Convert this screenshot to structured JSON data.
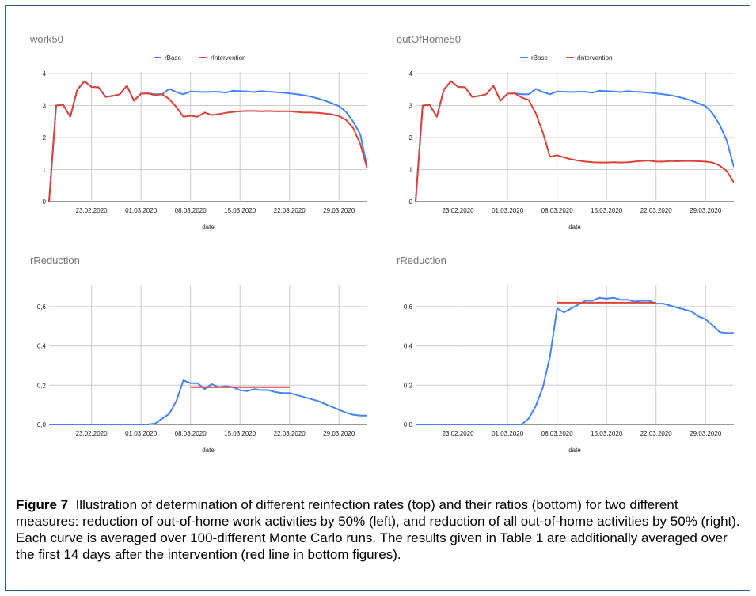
{
  "chart_data": [
    {
      "type": "line",
      "title": "work50",
      "xlabel": "date",
      "ylabel": "",
      "ylim": [
        0,
        4
      ],
      "yticks": [
        "0",
        "1",
        "2",
        "3",
        "4"
      ],
      "xtick_labels": [
        "23.02.2020",
        "01.03.2020",
        "08.03.2020",
        "15.03.2020",
        "22.03.2020",
        "29.03.2020"
      ],
      "xtick_index": [
        6,
        13,
        20,
        27,
        34,
        41
      ],
      "grid": true,
      "legend": "top-center",
      "series": [
        {
          "name": "rBase",
          "color": "#4285f4",
          "values": [
            0,
            3.0,
            3.02,
            2.65,
            3.5,
            3.76,
            3.58,
            3.57,
            3.27,
            3.3,
            3.35,
            3.62,
            3.15,
            3.37,
            3.38,
            3.35,
            3.35,
            3.52,
            3.42,
            3.35,
            3.44,
            3.43,
            3.42,
            3.43,
            3.43,
            3.4,
            3.46,
            3.45,
            3.44,
            3.42,
            3.45,
            3.43,
            3.42,
            3.4,
            3.38,
            3.35,
            3.32,
            3.28,
            3.22,
            3.15,
            3.07,
            2.98,
            2.8,
            2.5,
            2.1,
            1.05
          ]
        },
        {
          "name": "rIntervention",
          "color": "#db4437",
          "values": [
            0,
            3.0,
            3.02,
            2.65,
            3.5,
            3.76,
            3.58,
            3.57,
            3.27,
            3.3,
            3.35,
            3.62,
            3.15,
            3.37,
            3.38,
            3.32,
            3.35,
            3.2,
            2.95,
            2.65,
            2.68,
            2.65,
            2.78,
            2.7,
            2.73,
            2.77,
            2.8,
            2.82,
            2.83,
            2.83,
            2.82,
            2.83,
            2.82,
            2.82,
            2.82,
            2.8,
            2.78,
            2.78,
            2.77,
            2.75,
            2.72,
            2.67,
            2.55,
            2.3,
            1.8,
            1.02
          ]
        }
      ]
    },
    {
      "type": "line",
      "title": "outOfHome50",
      "xlabel": "date",
      "ylabel": "",
      "ylim": [
        0,
        4
      ],
      "yticks": [
        "0",
        "1",
        "2",
        "3",
        "4"
      ],
      "xtick_labels": [
        "23.02.2020",
        "01.03.2020",
        "08.03.2020",
        "15.03.2020",
        "22.03.2020",
        "29.03.2020"
      ],
      "xtick_index": [
        6,
        13,
        20,
        27,
        34,
        41
      ],
      "grid": true,
      "legend": "top-center",
      "series": [
        {
          "name": "rBase",
          "color": "#4285f4",
          "values": [
            0,
            3.0,
            3.02,
            2.65,
            3.5,
            3.76,
            3.58,
            3.57,
            3.27,
            3.3,
            3.35,
            3.62,
            3.15,
            3.37,
            3.38,
            3.35,
            3.35,
            3.52,
            3.42,
            3.35,
            3.44,
            3.43,
            3.42,
            3.43,
            3.43,
            3.4,
            3.46,
            3.45,
            3.44,
            3.42,
            3.45,
            3.43,
            3.42,
            3.4,
            3.38,
            3.35,
            3.32,
            3.28,
            3.22,
            3.15,
            3.07,
            2.98,
            2.75,
            2.4,
            1.9,
            1.08
          ]
        },
        {
          "name": "rIntervention",
          "color": "#db4437",
          "values": [
            0,
            3.0,
            3.02,
            2.65,
            3.5,
            3.76,
            3.58,
            3.57,
            3.27,
            3.3,
            3.35,
            3.62,
            3.15,
            3.37,
            3.38,
            3.25,
            3.17,
            2.75,
            2.15,
            1.4,
            1.45,
            1.38,
            1.32,
            1.28,
            1.25,
            1.23,
            1.22,
            1.22,
            1.23,
            1.22,
            1.23,
            1.25,
            1.27,
            1.28,
            1.25,
            1.25,
            1.27,
            1.26,
            1.27,
            1.27,
            1.26,
            1.25,
            1.22,
            1.12,
            0.95,
            0.6
          ]
        }
      ]
    },
    {
      "type": "line",
      "title": "rReduction",
      "xlabel": "date",
      "ylabel": "",
      "ylim": [
        0,
        0.7
      ],
      "yticks": [
        "0,0",
        "0,2",
        "0,4",
        "0,6"
      ],
      "xtick_labels": [
        "23.02.2020",
        "01.03.2020",
        "08.03.2020",
        "15.03.2020",
        "22.03.2020",
        "29.03.2020"
      ],
      "xtick_index": [
        6,
        13,
        20,
        27,
        34,
        41
      ],
      "grid": true,
      "series": [
        {
          "name": "",
          "color": "#4285f4",
          "values": [
            0,
            0,
            0,
            0,
            0,
            0,
            0,
            0,
            0,
            0,
            0,
            0,
            0,
            0,
            0,
            0.005,
            0.03,
            0.055,
            0.12,
            0.225,
            0.21,
            0.21,
            0.18,
            0.205,
            0.19,
            0.195,
            0.19,
            0.175,
            0.17,
            0.18,
            0.175,
            0.175,
            0.165,
            0.16,
            0.16,
            0.15,
            0.14,
            0.13,
            0.12,
            0.105,
            0.09,
            0.075,
            0.06,
            0.05,
            0.045,
            0.045
          ]
        },
        {
          "name": "",
          "color": "#db4437",
          "segment": {
            "x_start_index": 20,
            "x_end_index": 34,
            "value": 0.19
          }
        }
      ]
    },
    {
      "type": "line",
      "title": "rReduction",
      "xlabel": "date",
      "ylabel": "",
      "ylim": [
        0,
        0.7
      ],
      "yticks": [
        "0,0",
        "0,2",
        "0,4",
        "0,6"
      ],
      "xtick_labels": [
        "23.02.2020",
        "01.03.2020",
        "08.03.2020",
        "15.03.2020",
        "22.03.2020",
        "29.03.2020"
      ],
      "xtick_index": [
        6,
        13,
        20,
        27,
        34,
        41
      ],
      "grid": true,
      "series": [
        {
          "name": "",
          "color": "#4285f4",
          "values": [
            0,
            0,
            0,
            0,
            0,
            0,
            0,
            0,
            0,
            0,
            0,
            0,
            0,
            0,
            0,
            0,
            0.03,
            0.095,
            0.19,
            0.345,
            0.59,
            0.57,
            0.59,
            0.61,
            0.63,
            0.63,
            0.645,
            0.64,
            0.645,
            0.635,
            0.635,
            0.625,
            0.63,
            0.63,
            0.615,
            0.615,
            0.605,
            0.595,
            0.585,
            0.575,
            0.55,
            0.535,
            0.505,
            0.47,
            0.465,
            0.465
          ]
        },
        {
          "name": "",
          "color": "#db4437",
          "segment": {
            "x_start_index": 20,
            "x_end_index": 34,
            "value": 0.62
          }
        }
      ]
    }
  ],
  "legend_labels": [
    "rBase",
    "rIntervention"
  ],
  "caption": {
    "label": "Figure 7",
    "text": "Illustration of determination of different reinfection rates (top) and their ratios (bottom) for two different measures: reduction of out-of-home work activities by 50% (left), and reduction of all out-of-home activities by 50% (right). Each curve is averaged over 100-different Monte Carlo runs. The results given in Table 1 are additionally averaged over the first 14 days after the intervention (red line in bottom figures)."
  }
}
